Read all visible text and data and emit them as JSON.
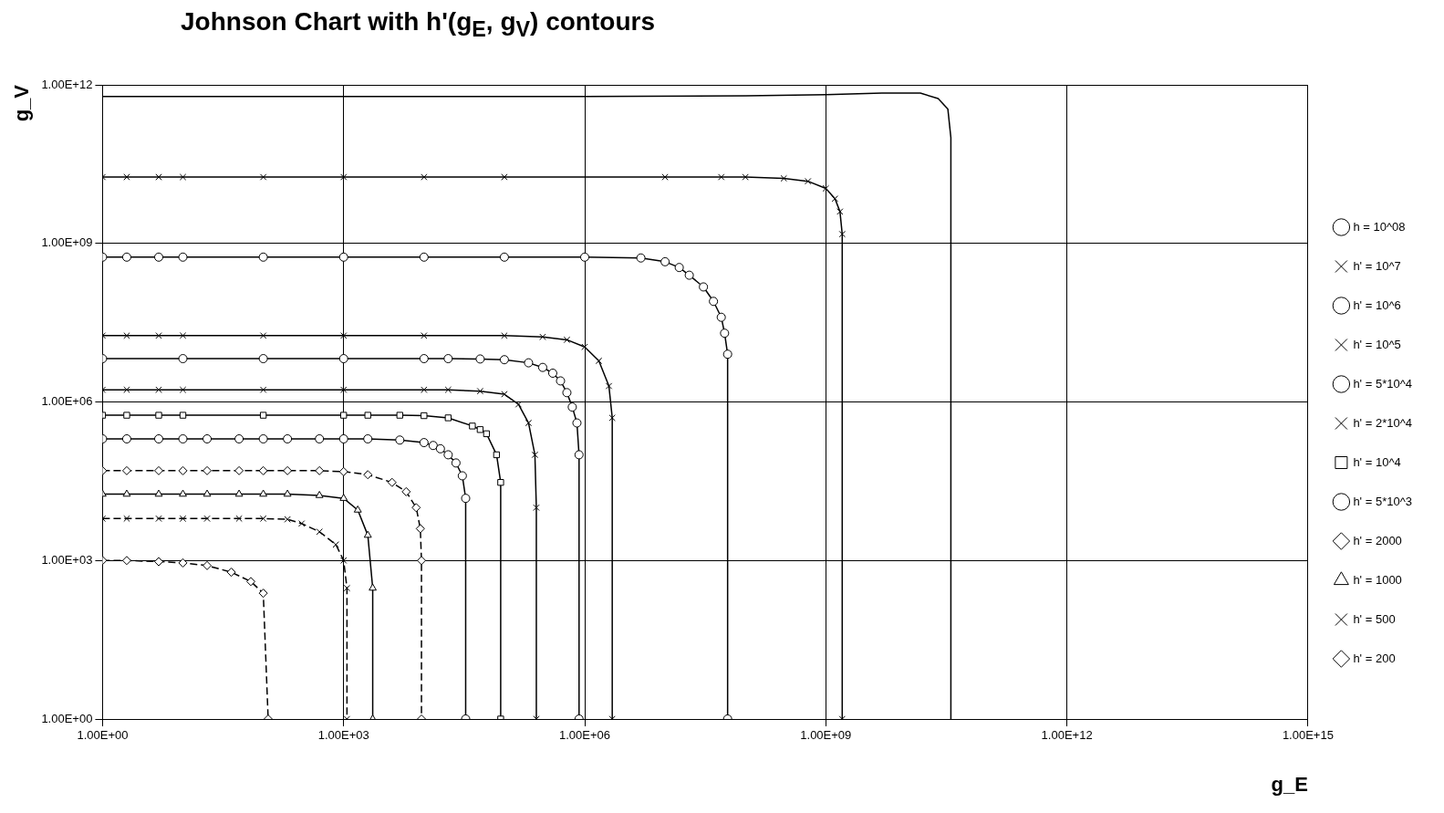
{
  "chart_data": {
    "type": "line",
    "title": "Johnson Chart with h'(g$_{E}$, g$_{V}$) contours",
    "xlabel": "g_E",
    "ylabel": "g_V",
    "log": "xy",
    "grid": true,
    "legend": "right",
    "xlim": [
      1,
      1000000000000000.0
    ],
    "ylim": [
      1,
      1000000000000.0
    ],
    "xticks": [
      {
        "value": 1,
        "label": "1.00E+00"
      },
      {
        "value": 1000,
        "label": "1.00E+03"
      },
      {
        "value": 1000000,
        "label": "1.00E+06"
      },
      {
        "value": 1000000000,
        "label": "1.00E+09"
      },
      {
        "value": 1000000000000,
        "label": "1.00E+12"
      },
      {
        "value": 1000000000000000,
        "label": "1.00E+15"
      }
    ],
    "yticks": [
      {
        "value": 1,
        "label": "1.00E+00"
      },
      {
        "value": 1000,
        "label": "1.00E+03"
      },
      {
        "value": 1000000,
        "label": "1.00E+06"
      },
      {
        "value": 1000000000,
        "label": "1.00E+09"
      },
      {
        "value": 1000000000000,
        "label": "1.00E+12"
      }
    ],
    "series": [
      {
        "name": "h = 10^08",
        "color": "#000000",
        "marker": "none",
        "line_style": "solid",
        "x": [
          1,
          1000.0,
          1000000.0,
          100000000.0,
          1000000000.0,
          5000000000.0,
          15000000000.0,
          25000000000.0,
          33000000000.0,
          36000000000.0,
          36000000000.0
        ],
        "values": [
          600000000000.0,
          600000000000.0,
          600000000000.0,
          620000000000.0,
          650000000000.0,
          700000000000.0,
          700000000000.0,
          550000000000.0,
          350000000000.0,
          100000000000.0,
          1
        ]
      },
      {
        "name": "h' = 10^7",
        "color": "#000000",
        "marker": "cross",
        "line_style": "solid",
        "x": [
          1,
          2,
          5,
          10,
          100,
          1000,
          10000.0,
          100000.0,
          10000000.0,
          50000000.0,
          100000000.0,
          300000000.0,
          600000000.0,
          1000000000.0,
          1300000000.0,
          1500000000.0,
          1600000000.0,
          1600000000.0
        ],
        "values": [
          18000000000.0,
          18000000000.0,
          18000000000.0,
          18000000000.0,
          18000000000.0,
          18000000000.0,
          18000000000.0,
          18000000000.0,
          18000000000.0,
          18000000000.0,
          18000000000.0,
          17000000000.0,
          15000000000.0,
          11000000000.0,
          7000000000.0,
          4000000000.0,
          1500000000.0,
          1
        ]
      },
      {
        "name": "h' = 10^6",
        "color": "#000000",
        "marker": "circle",
        "line_style": "solid",
        "x": [
          1,
          2,
          5,
          10,
          100,
          1000,
          10000.0,
          100000.0,
          1000000.0,
          5000000.0,
          10000000.0,
          15000000.0,
          20000000.0,
          30000000.0,
          40000000.0,
          50000000.0,
          55000000.0,
          60000000.0,
          60000000.0
        ],
        "values": [
          550000000.0,
          550000000.0,
          550000000.0,
          550000000.0,
          550000000.0,
          550000000.0,
          550000000.0,
          550000000.0,
          550000000.0,
          530000000.0,
          450000000.0,
          350000000.0,
          250000000.0,
          150000000.0,
          80000000.0,
          40000000.0,
          20000000.0,
          8000000.0,
          1
        ]
      },
      {
        "name": "h' = 10^5",
        "color": "#000000",
        "marker": "cross",
        "line_style": "solid",
        "x": [
          1,
          2,
          5,
          10,
          100,
          1000,
          10000.0,
          100000.0,
          300000.0,
          600000.0,
          1000000.0,
          1500000.0,
          2000000.0,
          2200000.0,
          2200000.0
        ],
        "values": [
          18000000.0,
          18000000.0,
          18000000.0,
          18000000.0,
          18000000.0,
          18000000.0,
          18000000.0,
          18000000.0,
          17000000.0,
          15000000.0,
          11000000.0,
          6000000.0,
          2000000.0,
          500000.0,
          1
        ]
      },
      {
        "name": "h' = 5*10^4",
        "color": "#000000",
        "marker": "circle",
        "line_style": "solid",
        "x": [
          1,
          10,
          100,
          1000,
          10000.0,
          20000.0,
          50000.0,
          100000.0,
          200000.0,
          300000.0,
          400000.0,
          500000.0,
          600000.0,
          700000.0,
          800000.0,
          850000.0,
          850000.0
        ],
        "values": [
          6600000.0,
          6600000.0,
          6600000.0,
          6600000.0,
          6600000.0,
          6600000.0,
          6500000.0,
          6300000.0,
          5500000.0,
          4500000.0,
          3500000.0,
          2500000.0,
          1500000.0,
          800000.0,
          400000.0,
          100000.0,
          1
        ]
      },
      {
        "name": "h' = 2*10^4",
        "color": "#000000",
        "marker": "cross",
        "line_style": "solid",
        "x": [
          1,
          2,
          5,
          10,
          100,
          1000,
          10000.0,
          20000.0,
          50000.0,
          100000.0,
          150000.0,
          200000.0,
          240000.0,
          250000.0,
          250000.0
        ],
        "values": [
          1700000.0,
          1700000.0,
          1700000.0,
          1700000.0,
          1700000.0,
          1700000.0,
          1700000.0,
          1700000.0,
          1600000.0,
          1400000.0,
          900000.0,
          400000.0,
          100000.0,
          10000.0,
          1
        ]
      },
      {
        "name": "h' = 10^4",
        "color": "#000000",
        "marker": "square",
        "line_style": "solid",
        "x": [
          1,
          2,
          5,
          10,
          100,
          1000,
          2000,
          5000,
          10000.0,
          20000.0,
          40000.0,
          50000.0,
          60000.0,
          80000.0,
          90000.0,
          90000.0
        ],
        "values": [
          560000.0,
          560000.0,
          560000.0,
          560000.0,
          560000.0,
          560000.0,
          560000.0,
          560000.0,
          550000.0,
          500000.0,
          350000.0,
          300000.0,
          250000.0,
          100000.0,
          30000.0,
          1
        ]
      },
      {
        "name": "h' = 5*10^3",
        "color": "#000000",
        "marker": "circle",
        "line_style": "solid",
        "x": [
          1,
          2,
          5,
          10,
          20,
          50,
          100,
          200,
          500,
          1000,
          2000,
          5000,
          10000.0,
          13000.0,
          16000.0,
          20000.0,
          25000.0,
          30000.0,
          33000.0,
          33000.0
        ],
        "values": [
          200000.0,
          200000.0,
          200000.0,
          200000.0,
          200000.0,
          200000.0,
          200000.0,
          200000.0,
          200000.0,
          200000.0,
          200000.0,
          190000.0,
          170000.0,
          150000.0,
          130000.0,
          100000.0,
          70000.0,
          40000.0,
          15000.0,
          1
        ]
      },
      {
        "name": "h' = 2000",
        "color": "#000000",
        "marker": "diamond",
        "line_style": "dashed",
        "x": [
          1,
          2,
          5,
          10,
          20,
          50,
          100,
          200,
          500,
          1000,
          2000,
          4000,
          6000,
          8000,
          9000,
          9300,
          9300
        ],
        "values": [
          50000.0,
          50000.0,
          50000.0,
          50000.0,
          50000.0,
          50000.0,
          50000.0,
          50000.0,
          50000.0,
          48000.0,
          42000.0,
          30000.0,
          20000.0,
          10000.0,
          4000,
          1000,
          1
        ]
      },
      {
        "name": "h' = 1000",
        "color": "#000000",
        "marker": "triangle",
        "line_style": "solid",
        "x": [
          1,
          2,
          5,
          10,
          20,
          50,
          100,
          200,
          500,
          1000,
          1500,
          2000,
          2300,
          2300
        ],
        "values": [
          18000.0,
          18000.0,
          18000.0,
          18000.0,
          18000.0,
          18000.0,
          18000.0,
          18000.0,
          17000.0,
          15000.0,
          9000,
          3000,
          300,
          1
        ]
      },
      {
        "name": "h' = 500",
        "color": "#000000",
        "marker": "cross",
        "line_style": "dashed",
        "x": [
          1,
          2,
          5,
          10,
          20,
          50,
          100,
          200,
          300,
          500,
          800,
          1000,
          1100,
          1100
        ],
        "values": [
          6200,
          6200,
          6200,
          6200,
          6200,
          6200,
          6200,
          6000,
          5000,
          3500,
          2000,
          1000,
          300,
          1
        ]
      },
      {
        "name": "h' = 200",
        "color": "#000000",
        "marker": "diamond",
        "line_style": "dashed",
        "x": [
          1,
          2,
          5,
          10,
          20,
          40,
          70,
          100,
          115
        ],
        "values": [
          1000,
          1000,
          950,
          900,
          800,
          600,
          400,
          240,
          1
        ]
      }
    ]
  }
}
